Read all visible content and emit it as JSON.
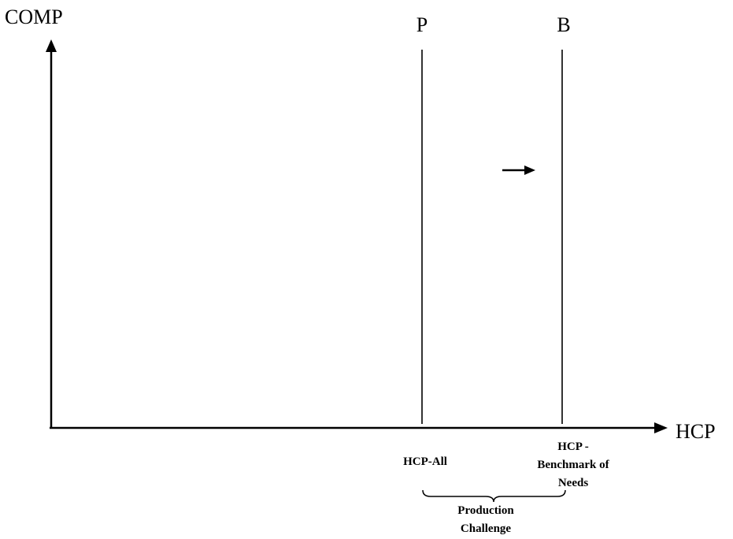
{
  "axes": {
    "y_label": "COMP",
    "x_label": "HCP"
  },
  "lines": {
    "p": {
      "top_label": "P",
      "bottom_label": "HCP-All"
    },
    "b": {
      "top_label": "B",
      "bottom_label_lines": [
        "HCP -",
        "Benchmark of",
        "Needs"
      ]
    }
  },
  "brace": {
    "label_lines": [
      "Production",
      "Challenge"
    ]
  },
  "colors": {
    "ink": "#000000",
    "background": "#ffffff"
  }
}
